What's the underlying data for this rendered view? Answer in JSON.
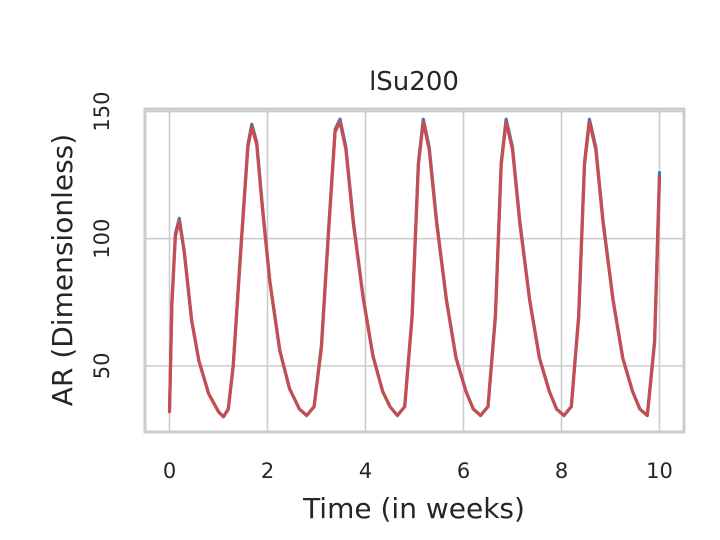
{
  "chart_data": {
    "type": "line",
    "title": "lSu200",
    "xlabel": "Time (in weeks)",
    "ylabel": "AR (Dimensionless)",
    "xlim": [
      -0.5,
      10.5
    ],
    "ylim": [
      24,
      151
    ],
    "xticks": [
      0,
      2,
      4,
      6,
      8,
      10
    ],
    "yticks": [
      50,
      100,
      150
    ],
    "grid": true,
    "series": [
      {
        "color": "#4c72b0",
        "x": [
          0,
          0.05,
          0.12,
          0.2,
          0.3,
          0.45,
          0.6,
          0.8,
          1.0,
          1.1,
          1.2,
          1.3,
          1.45,
          1.6,
          1.68,
          1.78,
          1.9,
          2.05,
          2.25,
          2.45,
          2.65,
          2.8,
          2.95,
          3.1,
          3.25,
          3.38,
          3.48,
          3.6,
          3.75,
          3.95,
          4.15,
          4.35,
          4.5,
          4.65,
          4.8,
          4.95,
          5.08,
          5.18,
          5.3,
          5.45,
          5.65,
          5.85,
          6.05,
          6.2,
          6.35,
          6.5,
          6.65,
          6.77,
          6.87,
          7.0,
          7.15,
          7.35,
          7.55,
          7.75,
          7.9,
          8.05,
          8.2,
          8.35,
          8.47,
          8.57,
          8.7,
          8.85,
          9.05,
          9.25,
          9.45,
          9.6,
          9.75,
          9.9,
          10.0
        ],
        "y": [
          32,
          75,
          102,
          108,
          95,
          68,
          52,
          39,
          32,
          30,
          33,
          50,
          95,
          137,
          145,
          138,
          112,
          83,
          56,
          41,
          33,
          30.5,
          34,
          58,
          105,
          143,
          147,
          136,
          107,
          77,
          54,
          40,
          34,
          30.5,
          34,
          70,
          130,
          147,
          136,
          107,
          76,
          53,
          40,
          33,
          30.5,
          34,
          70,
          130,
          147,
          136,
          107,
          76,
          53,
          40,
          33,
          30.5,
          34,
          70,
          130,
          147,
          136,
          107,
          76,
          53,
          40,
          33,
          30.5,
          60,
          126
        ]
      },
      {
        "color": "#c44e52",
        "x": [
          0,
          0.05,
          0.12,
          0.2,
          0.3,
          0.45,
          0.6,
          0.8,
          1.0,
          1.1,
          1.2,
          1.3,
          1.45,
          1.6,
          1.68,
          1.78,
          1.9,
          2.05,
          2.25,
          2.45,
          2.65,
          2.8,
          2.95,
          3.1,
          3.25,
          3.38,
          3.48,
          3.6,
          3.75,
          3.95,
          4.15,
          4.35,
          4.5,
          4.65,
          4.8,
          4.95,
          5.08,
          5.18,
          5.3,
          5.45,
          5.65,
          5.85,
          6.05,
          6.2,
          6.35,
          6.5,
          6.65,
          6.77,
          6.87,
          7.0,
          7.15,
          7.35,
          7.55,
          7.75,
          7.9,
          8.05,
          8.2,
          8.35,
          8.47,
          8.57,
          8.7,
          8.85,
          9.05,
          9.25,
          9.45,
          9.6,
          9.75,
          9.9,
          10.0
        ],
        "y": [
          32,
          74,
          101,
          107,
          95,
          68,
          52,
          39,
          32,
          30,
          33,
          50,
          94,
          136,
          144,
          137,
          111,
          83,
          56,
          41,
          33,
          30.5,
          34,
          57,
          104,
          142,
          146,
          135,
          106,
          77,
          54,
          40,
          34,
          30.5,
          34,
          69,
          129,
          146,
          135,
          106,
          76,
          53,
          40,
          33,
          30.5,
          34,
          69,
          129,
          146,
          135,
          106,
          76,
          53,
          40,
          33,
          30.5,
          34,
          69,
          129,
          146,
          135,
          106,
          76,
          53,
          40,
          33,
          30.5,
          59,
          124
        ]
      }
    ]
  }
}
